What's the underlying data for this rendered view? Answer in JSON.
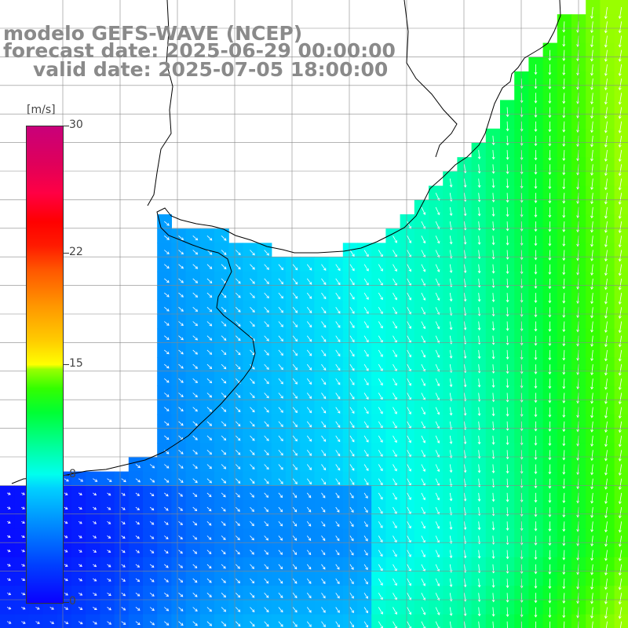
{
  "title": {
    "line1": "modelo GEFS-WAVE (NCEP)",
    "line2": "forecast date: 2025-06-29 00:00:00",
    "line3": "valid date: 2025-07-05 18:00:00"
  },
  "colorbar": {
    "unit": "[m/s]",
    "min": 0,
    "max": 30,
    "ticks": [
      {
        "value": 30,
        "label": "30"
      },
      {
        "value": 22,
        "label": "22"
      },
      {
        "value": 15,
        "label": "15"
      },
      {
        "value": 8,
        "label": "8"
      },
      {
        "value": 0,
        "label": "0"
      }
    ]
  },
  "map": {
    "variable": "wind speed with direction arrows",
    "land_color": "#ffffff",
    "coastline_color": "#000000",
    "grid_color": "#888888",
    "grid_enabled": true
  }
}
